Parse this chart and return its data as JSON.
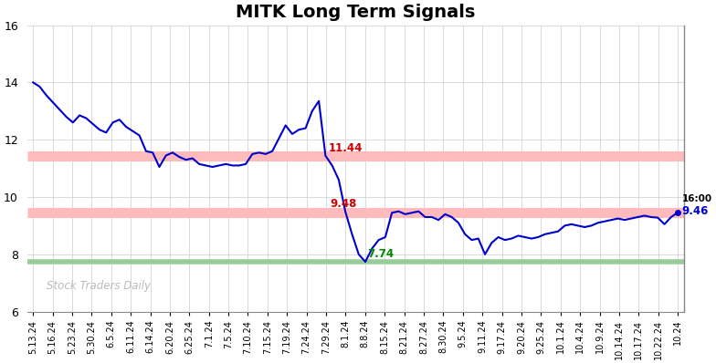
{
  "title": "MITK Long Term Signals",
  "title_fontsize": 14,
  "title_fontweight": "bold",
  "ylim": [
    6,
    16
  ],
  "yticks": [
    6,
    8,
    10,
    12,
    14,
    16
  ],
  "line_color": "#0000cc",
  "line_width": 1.5,
  "hline_upper": 11.44,
  "hline_lower": 9.46,
  "hline_green": 7.74,
  "hline_upper_color": "#ffbbbb",
  "hline_lower_color": "#ffbbbb",
  "hline_green_color": "#99cc99",
  "annotation_upper_text": "11.44",
  "annotation_upper_color": "#cc0000",
  "annotation_lower_text": "9.48",
  "annotation_lower_color": "#cc0000",
  "annotation_min_text": "7.74",
  "annotation_min_color": "#008800",
  "annotation_end_time": "16:00",
  "annotation_end_value": "9.46",
  "annotation_end_color": "#0000cc",
  "watermark": "Stock Traders Daily",
  "watermark_color": "#bbbbbb",
  "background_color": "#ffffff",
  "grid_color": "#cccccc",
  "x_labels": [
    "5.13.24",
    "5.16.24",
    "5.23.24",
    "5.30.24",
    "6.5.24",
    "6.11.24",
    "6.14.24",
    "6.20.24",
    "6.25.24",
    "7.1.24",
    "7.5.24",
    "7.10.24",
    "7.15.24",
    "7.19.24",
    "7.24.24",
    "7.29.24",
    "8.1.24",
    "8.8.24",
    "8.15.24",
    "8.21.24",
    "8.27.24",
    "8.30.24",
    "9.5.24",
    "9.11.24",
    "9.17.24",
    "9.20.24",
    "9.25.24",
    "10.1.24",
    "10.4.24",
    "10.9.24",
    "10.14.24",
    "10.17.24",
    "10.22.24",
    "10.24"
  ],
  "prices": [
    14.0,
    13.85,
    13.55,
    13.3,
    13.05,
    12.8,
    12.6,
    12.85,
    12.75,
    12.55,
    12.35,
    12.25,
    12.6,
    12.7,
    12.45,
    12.3,
    12.15,
    11.6,
    11.55,
    11.05,
    11.45,
    11.55,
    11.4,
    11.3,
    11.35,
    11.15,
    11.1,
    11.05,
    11.1,
    11.15,
    11.1,
    11.1,
    11.15,
    11.5,
    11.55,
    11.5,
    11.6,
    12.05,
    12.5,
    12.2,
    12.35,
    12.4,
    13.0,
    13.35,
    11.44,
    11.1,
    10.6,
    9.48,
    8.7,
    8.0,
    7.74,
    8.2,
    8.5,
    8.6,
    9.45,
    9.5,
    9.4,
    9.45,
    9.5,
    9.3,
    9.3,
    9.2,
    9.4,
    9.3,
    9.1,
    8.7,
    8.5,
    8.55,
    8.0,
    8.4,
    8.6,
    8.5,
    8.55,
    8.65,
    8.6,
    8.55,
    8.6,
    8.7,
    8.75,
    8.8,
    9.0,
    9.05,
    9.0,
    8.95,
    9.0,
    9.1,
    9.15,
    9.2,
    9.25,
    9.2,
    9.25,
    9.3,
    9.35,
    9.3,
    9.28,
    9.05,
    9.3,
    9.46
  ],
  "upper_ann_idx": 44,
  "lower_ann_idx": 47,
  "min_ann_idx": 50
}
